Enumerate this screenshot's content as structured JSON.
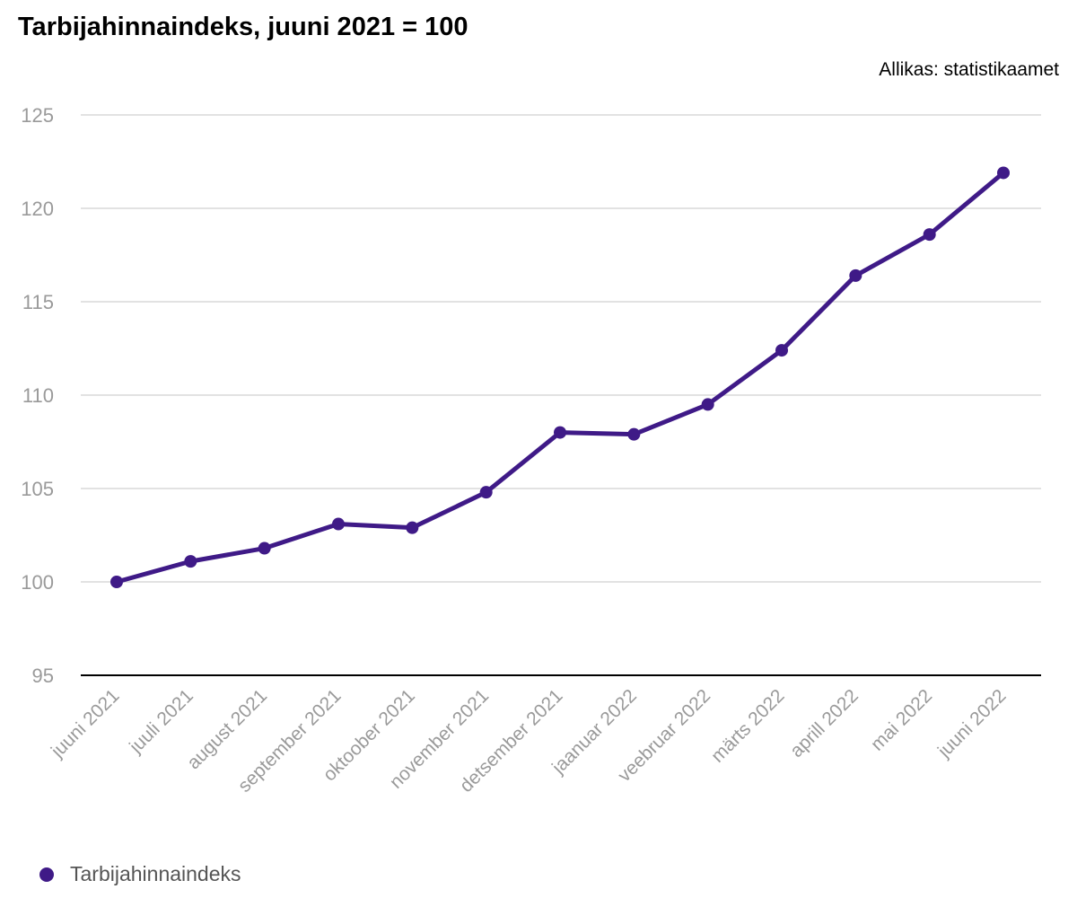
{
  "header": {
    "title": "Tarbijahinnaindeks, juuni 2021 = 100",
    "source": "Allikas: statistikaamet"
  },
  "legend": {
    "label": "Tarbijahinnaindeks"
  },
  "colors": {
    "series": "#3f1a87",
    "grid": "#d9d9d9",
    "axis": "#000000",
    "tick_label": "#9a9a9a"
  },
  "chart_data": {
    "type": "line",
    "title": "Tarbijahinnaindeks, juuni 2021 = 100",
    "xlabel": "",
    "ylabel": "",
    "ylim": [
      95,
      125
    ],
    "yticks": [
      95,
      100,
      105,
      110,
      115,
      120,
      125
    ],
    "grid": true,
    "legend_position": "bottom-left",
    "categories": [
      "juuni 2021",
      "juuli 2021",
      "august 2021",
      "september 2021",
      "oktoober 2021",
      "november 2021",
      "detsember 2021",
      "jaanuar 2022",
      "veebruar 2022",
      "märts 2022",
      "aprill 2022",
      "mai 2022",
      "juuni 2022"
    ],
    "series": [
      {
        "name": "Tarbijahinnaindeks",
        "values": [
          100,
          101.1,
          101.8,
          103.1,
          102.9,
          104.8,
          108.0,
          107.9,
          109.5,
          112.4,
          116.4,
          118.6,
          121.9
        ]
      }
    ]
  }
}
